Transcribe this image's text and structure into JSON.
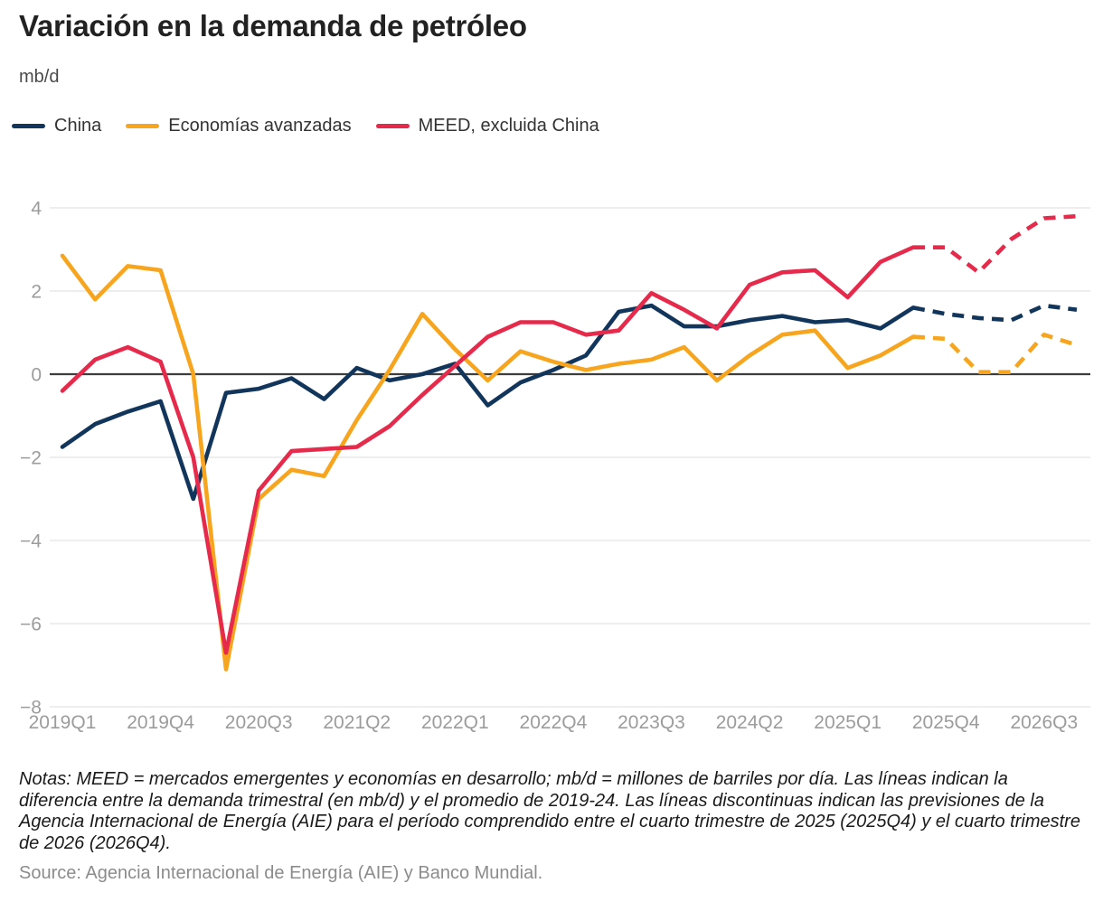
{
  "title": "Variación en la demanda de petróleo",
  "unit": "mb/d",
  "legend": [
    {
      "label": "China",
      "color": "#12355B"
    },
    {
      "label": "Economías avanzadas",
      "color": "#F7A51E"
    },
    {
      "label": "MEED, excluida China",
      "color": "#E62A4B"
    }
  ],
  "chart_data": {
    "type": "line",
    "x_quarters": [
      "2019Q1",
      "2019Q2",
      "2019Q3",
      "2019Q4",
      "2020Q1",
      "2020Q2",
      "2020Q3",
      "2020Q4",
      "2021Q1",
      "2021Q2",
      "2021Q3",
      "2021Q4",
      "2022Q1",
      "2022Q2",
      "2022Q3",
      "2022Q4",
      "2023Q1",
      "2023Q2",
      "2023Q3",
      "2023Q4",
      "2024Q1",
      "2024Q2",
      "2024Q3",
      "2024Q4",
      "2025Q1",
      "2025Q2",
      "2025Q3",
      "2025Q4",
      "2026Q1",
      "2026Q2",
      "2026Q3",
      "2026Q4"
    ],
    "x_tick_step": 3,
    "x_tick_labels_shown": [
      "2019Q1",
      "2019Q4",
      "2020Q3",
      "2021Q2",
      "2022Q1",
      "2022Q4",
      "2023Q3",
      "2024Q2",
      "2025Q1",
      "2025Q4",
      "2026Q3"
    ],
    "ylim": [
      -8,
      4
    ],
    "ytick_values": [
      4,
      2,
      0,
      -2,
      -4,
      -6,
      -8
    ],
    "ytick_labels": [
      "4",
      "2",
      "0",
      "−2",
      "−4",
      "−6",
      "−8"
    ],
    "grid": true,
    "legend_position": "top",
    "forecast_start_index": 26,
    "forecast_period": "2025Q4–2026Q4",
    "forecast_style": "dashed",
    "series": [
      {
        "name": "China",
        "color": "#12355B",
        "values": [
          -1.75,
          -1.2,
          -0.9,
          -0.65,
          -3.0,
          -0.45,
          -0.35,
          -0.1,
          -0.6,
          0.15,
          -0.15,
          0.0,
          0.25,
          -0.75,
          -0.2,
          0.1,
          0.45,
          1.5,
          1.65,
          1.15,
          1.15,
          1.3,
          1.4,
          1.25,
          1.3,
          1.1,
          1.6,
          1.45,
          1.35,
          1.3,
          1.65,
          1.55
        ]
      },
      {
        "name": "Economías avanzadas",
        "color": "#F7A51E",
        "values": [
          2.85,
          1.8,
          2.6,
          2.5,
          0.0,
          -7.1,
          -3.0,
          -2.3,
          -2.45,
          -1.1,
          0.1,
          1.45,
          0.6,
          -0.15,
          0.55,
          0.3,
          0.1,
          0.25,
          0.35,
          0.65,
          -0.15,
          0.45,
          0.95,
          1.05,
          0.15,
          0.45,
          0.9,
          0.85,
          0.05,
          0.05,
          0.95,
          0.7
        ]
      },
      {
        "name": "MEED, excluida China",
        "color": "#E62A4B",
        "values": [
          -0.4,
          0.35,
          0.65,
          0.3,
          -2.0,
          -6.7,
          -2.8,
          -1.85,
          -1.8,
          -1.75,
          -1.25,
          -0.5,
          0.2,
          0.9,
          1.25,
          1.25,
          0.95,
          1.05,
          1.95,
          1.55,
          1.1,
          2.15,
          2.45,
          2.5,
          1.85,
          2.7,
          3.05,
          3.05,
          2.45,
          3.25,
          3.75,
          3.8
        ]
      }
    ],
    "title": "Variación en la demanda de petróleo",
    "ylabel": "mb/d",
    "xlabel": ""
  },
  "notes": "Notas: MEED = mercados emergentes y economías en desarrollo; mb/d = millones de barriles por día. Las líneas indican la diferencia entre la demanda trimestral (en mb/d) y el promedio de 2019-24. Las líneas discontinuas indican las previsiones de la Agencia Internacional de Energía (AIE) para el período comprendido entre el cuarto trimestre de 2025 (2025Q4) y el cuarto trimestre de 2026 (2026Q4).",
  "source": "Source: Agencia Internacional de Energía (AIE) y Banco Mundial."
}
